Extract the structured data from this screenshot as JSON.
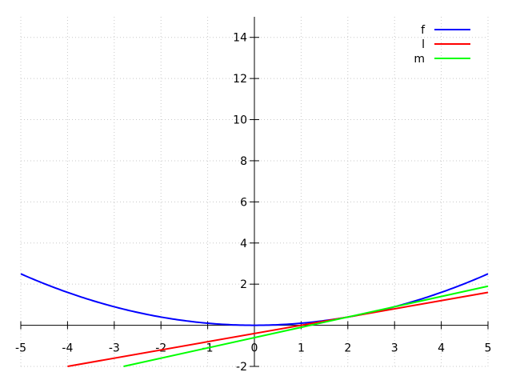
{
  "chart_data": {
    "type": "line",
    "title": "",
    "xlabel": "",
    "ylabel": "",
    "xlim": [
      -5,
      5
    ],
    "ylim": [
      -2,
      15
    ],
    "grid": true,
    "legend_position": "top-right",
    "axes_through_origin": true,
    "x_ticks": [
      -5,
      -4,
      -3,
      -2,
      -1,
      0,
      1,
      2,
      3,
      4,
      5
    ],
    "y_ticks": [
      -2,
      0,
      2,
      4,
      6,
      8,
      10,
      12,
      14
    ],
    "series": [
      {
        "name": "f",
        "color": "#0000ff",
        "expression": "0.1*x^2",
        "points": [
          [
            -5,
            2.5
          ],
          [
            -4,
            1.6
          ],
          [
            -3,
            0.9
          ],
          [
            -2,
            0.4
          ],
          [
            -1,
            0.1
          ],
          [
            0,
            0
          ],
          [
            1,
            0.1
          ],
          [
            2,
            0.4
          ],
          [
            3,
            0.9
          ],
          [
            4,
            1.6
          ],
          [
            5,
            2.5
          ]
        ]
      },
      {
        "name": "l",
        "color": "#ff0000",
        "points": [
          [
            -4,
            -2
          ],
          [
            5,
            1.6
          ]
        ]
      },
      {
        "name": "m",
        "color": "#00ff00",
        "points": [
          [
            -2.8,
            -2
          ],
          [
            5,
            1.9
          ]
        ]
      }
    ]
  }
}
